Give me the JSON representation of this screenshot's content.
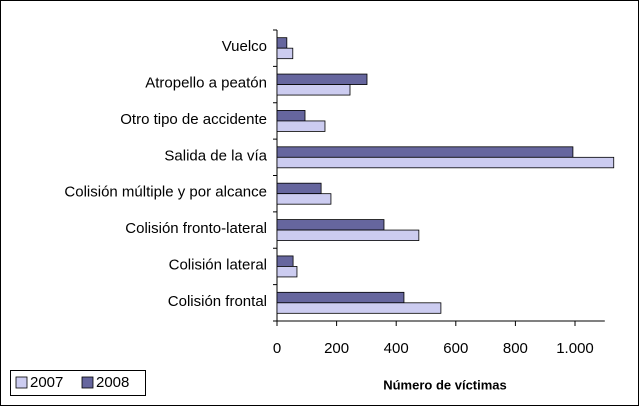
{
  "chart_data": {
    "type": "hbar",
    "categories": [
      "Vuelco",
      "Atropello a peatón",
      "Otro tipo de accidente",
      "Salida de la vía",
      "Colisión múltiple y por alcance",
      "Colisión fronto-lateral",
      "Colisión lateral",
      "Colisión frontal"
    ],
    "series": [
      {
        "name": "2007",
        "color": "#ccccf0",
        "values": [
          53,
          245,
          161,
          1130,
          181,
          476,
          67,
          550
        ]
      },
      {
        "name": "2008",
        "color": "#66669e",
        "values": [
          33,
          302,
          94,
          993,
          148,
          359,
          54,
          426
        ]
      }
    ],
    "xlabel": "Número de víctimas",
    "xlim": [
      0,
      1100
    ],
    "xticks": [
      0,
      200,
      400,
      600,
      800,
      {
        "value": 1000,
        "label": "1.000"
      }
    ],
    "legend": "bottom-left"
  }
}
